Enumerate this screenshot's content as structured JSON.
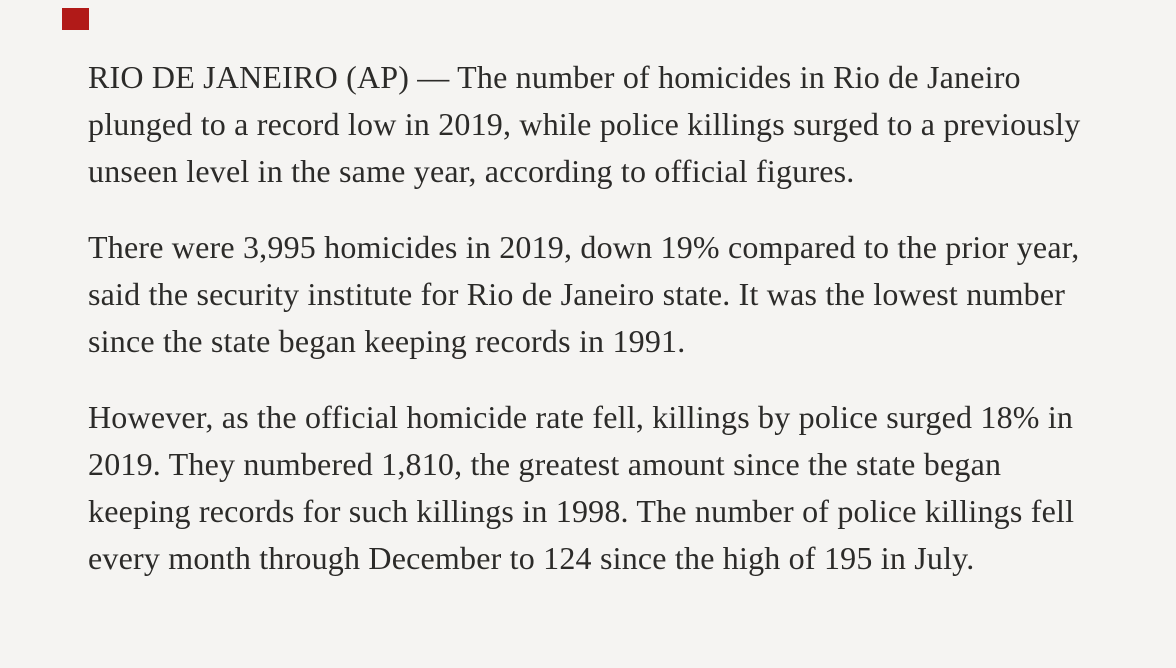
{
  "colors": {
    "background": "#f5f4f2",
    "text": "#2c2b29",
    "marker": "#b11a18"
  },
  "article": {
    "paragraphs": [
      {
        "lines": [
          "RIO DE JANEIRO (AP) — The number of homicides in Rio de Janeiro",
          "plunged to a record low in 2019, while police killings surged to a previously",
          "unseen level in the same year, according to official figures."
        ]
      },
      {
        "lines": [
          "There were 3,995 homicides in 2019, down 19% compared to the prior year,",
          "said the security institute for Rio de Janeiro state. It was the lowest number",
          "since the state began keeping records in 1991."
        ]
      },
      {
        "lines": [
          "However, as the official homicide rate fell, killings by police surged 18% in",
          "2019. They numbered 1,810, the greatest amount since the state began",
          "keeping records for such killings in 1998. The number of police killings fell",
          "every month through December to 124 since the high of 195 in July."
        ]
      }
    ]
  }
}
